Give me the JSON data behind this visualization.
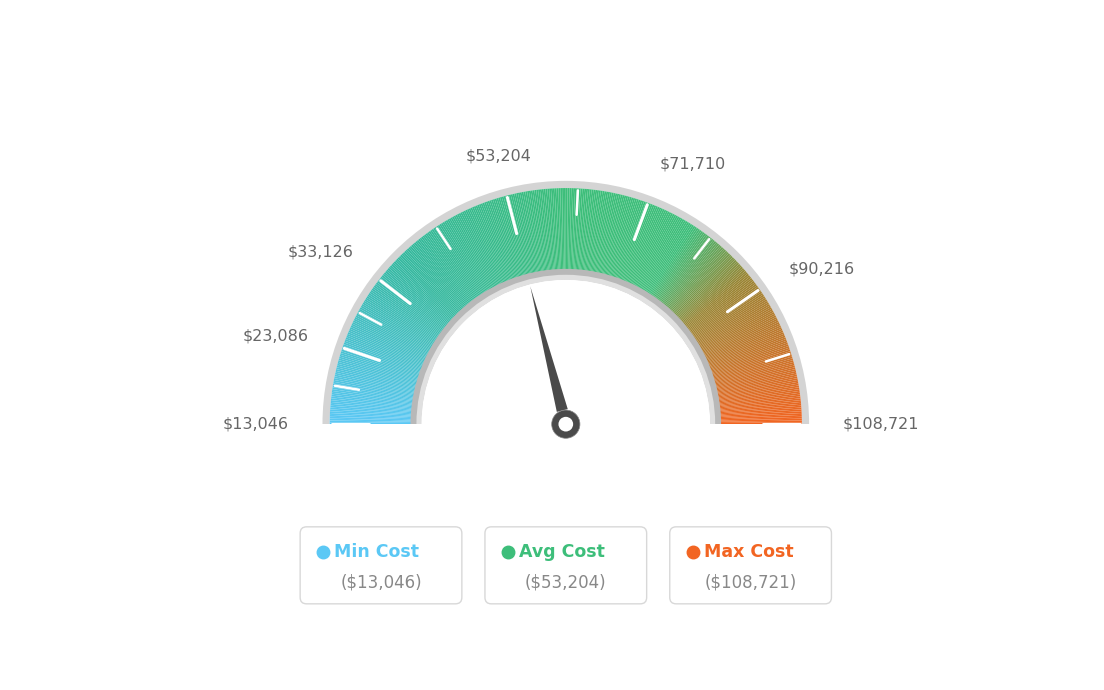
{
  "min_value": 13046,
  "max_value": 108721,
  "avg_value": 53204,
  "label_values": [
    13046,
    23086,
    33126,
    53204,
    71710,
    90216,
    108721
  ],
  "label_texts": [
    "$13,046",
    "$23,086",
    "$33,126",
    "$53,204",
    "$71,710",
    "$90,216",
    "$108,721"
  ],
  "min_cost_label": "Min Cost",
  "avg_cost_label": "Avg Cost",
  "max_cost_label": "Max Cost",
  "min_cost_value": "($13,046)",
  "avg_cost_value": "($53,204)",
  "max_cost_value": "($108,721)",
  "color_legend_min": "#5BC8F5",
  "color_legend_avg": "#3DBE7A",
  "color_legend_max": "#F26522",
  "background": "#ffffff",
  "label_color": "#666666",
  "needle_color": "#4a4a4a",
  "hub_color": "#4a4a4a",
  "outer_gray": "#d4d4d4",
  "inner_gray": "#c8c8c8",
  "inner_light": "#e8e8e8"
}
